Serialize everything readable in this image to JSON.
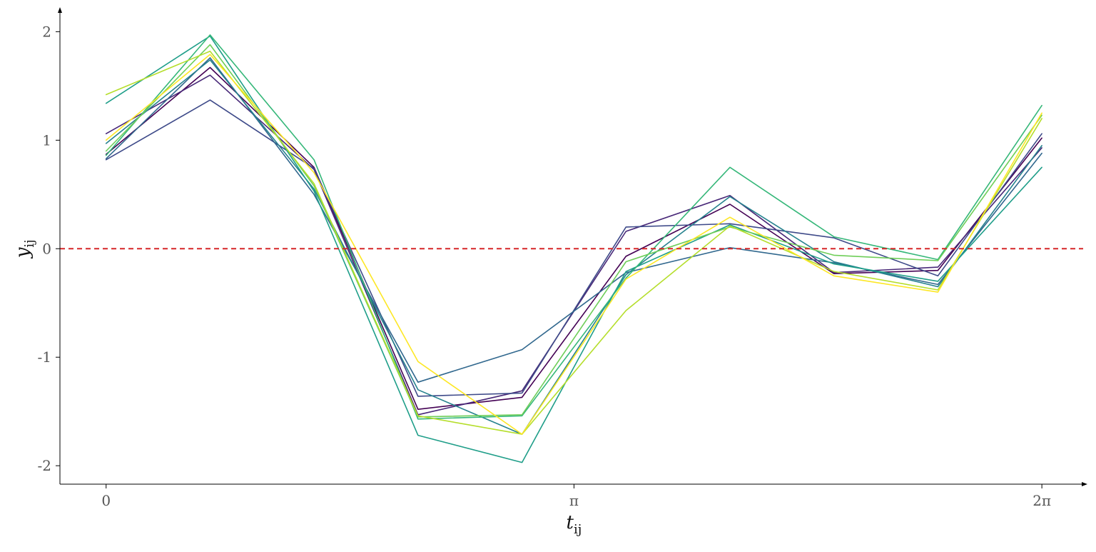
{
  "chart_data": {
    "type": "line",
    "xlabel": "t",
    "xlabel_sub": "ij",
    "ylabel": "y",
    "ylabel_sub": "ij",
    "x_ticks": [
      {
        "value": 0,
        "label": "0"
      },
      {
        "value": 3.14159,
        "label": "π"
      },
      {
        "value": 6.28319,
        "label": "2π"
      }
    ],
    "y_ticks": [
      {
        "value": -2,
        "label": "-2"
      },
      {
        "value": -1,
        "label": "-1"
      },
      {
        "value": 0,
        "label": "0"
      },
      {
        "value": 1,
        "label": "1"
      },
      {
        "value": 2,
        "label": "2"
      }
    ],
    "xlim": [
      -0.31,
      6.57
    ],
    "ylim": [
      -2.17,
      2.2
    ],
    "reference_line": {
      "y": 0,
      "style": "dashed",
      "color": "#d62728"
    },
    "grid": false,
    "legend": "none",
    "x": [
      0,
      0.6981,
      1.3963,
      2.0944,
      2.7925,
      3.4907,
      4.1888,
      4.8869,
      5.5851,
      6.2832
    ],
    "series": [
      {
        "color": "#440154",
        "values": [
          0.87,
          1.67,
          0.75,
          -1.48,
          -1.37,
          -0.07,
          0.41,
          -0.23,
          -0.2,
          1.02
        ]
      },
      {
        "color": "#482878",
        "values": [
          1.06,
          1.6,
          0.73,
          -1.53,
          -1.31,
          0.16,
          0.49,
          -0.22,
          -0.17,
          0.93
        ]
      },
      {
        "color": "#3e4a89",
        "values": [
          0.82,
          1.37,
          0.74,
          -1.36,
          -1.33,
          0.2,
          0.23,
          0.1,
          -0.25,
          1.06
        ]
      },
      {
        "color": "#31688e",
        "values": [
          0.83,
          1.76,
          0.5,
          -1.23,
          -0.93,
          -0.22,
          0.01,
          -0.13,
          -0.33,
          0.88
        ]
      },
      {
        "color": "#26828e",
        "values": [
          0.97,
          1.74,
          0.55,
          -1.3,
          -1.71,
          -0.24,
          0.48,
          -0.12,
          -0.35,
          0.95
        ]
      },
      {
        "color": "#1f9e89",
        "values": [
          1.34,
          1.96,
          0.53,
          -1.72,
          -1.97,
          -0.21,
          0.22,
          -0.14,
          -0.3,
          0.75
        ]
      },
      {
        "color": "#35b779",
        "values": [
          0.86,
          1.97,
          0.82,
          -1.57,
          -1.54,
          -0.27,
          0.75,
          0.11,
          -0.1,
          1.32
        ]
      },
      {
        "color": "#6ece58",
        "values": [
          0.9,
          1.88,
          0.58,
          -1.55,
          -1.53,
          -0.12,
          0.2,
          -0.06,
          -0.11,
          1.23
        ]
      },
      {
        "color": "#b5de2b",
        "values": [
          1.42,
          1.82,
          0.6,
          -1.54,
          -1.71,
          -0.57,
          0.21,
          -0.21,
          -0.38,
          1.2
        ]
      },
      {
        "color": "#fde725",
        "values": [
          1.0,
          1.79,
          0.7,
          -1.04,
          -1.71,
          -0.28,
          0.29,
          -0.25,
          -0.4,
          1.25
        ]
      }
    ]
  }
}
